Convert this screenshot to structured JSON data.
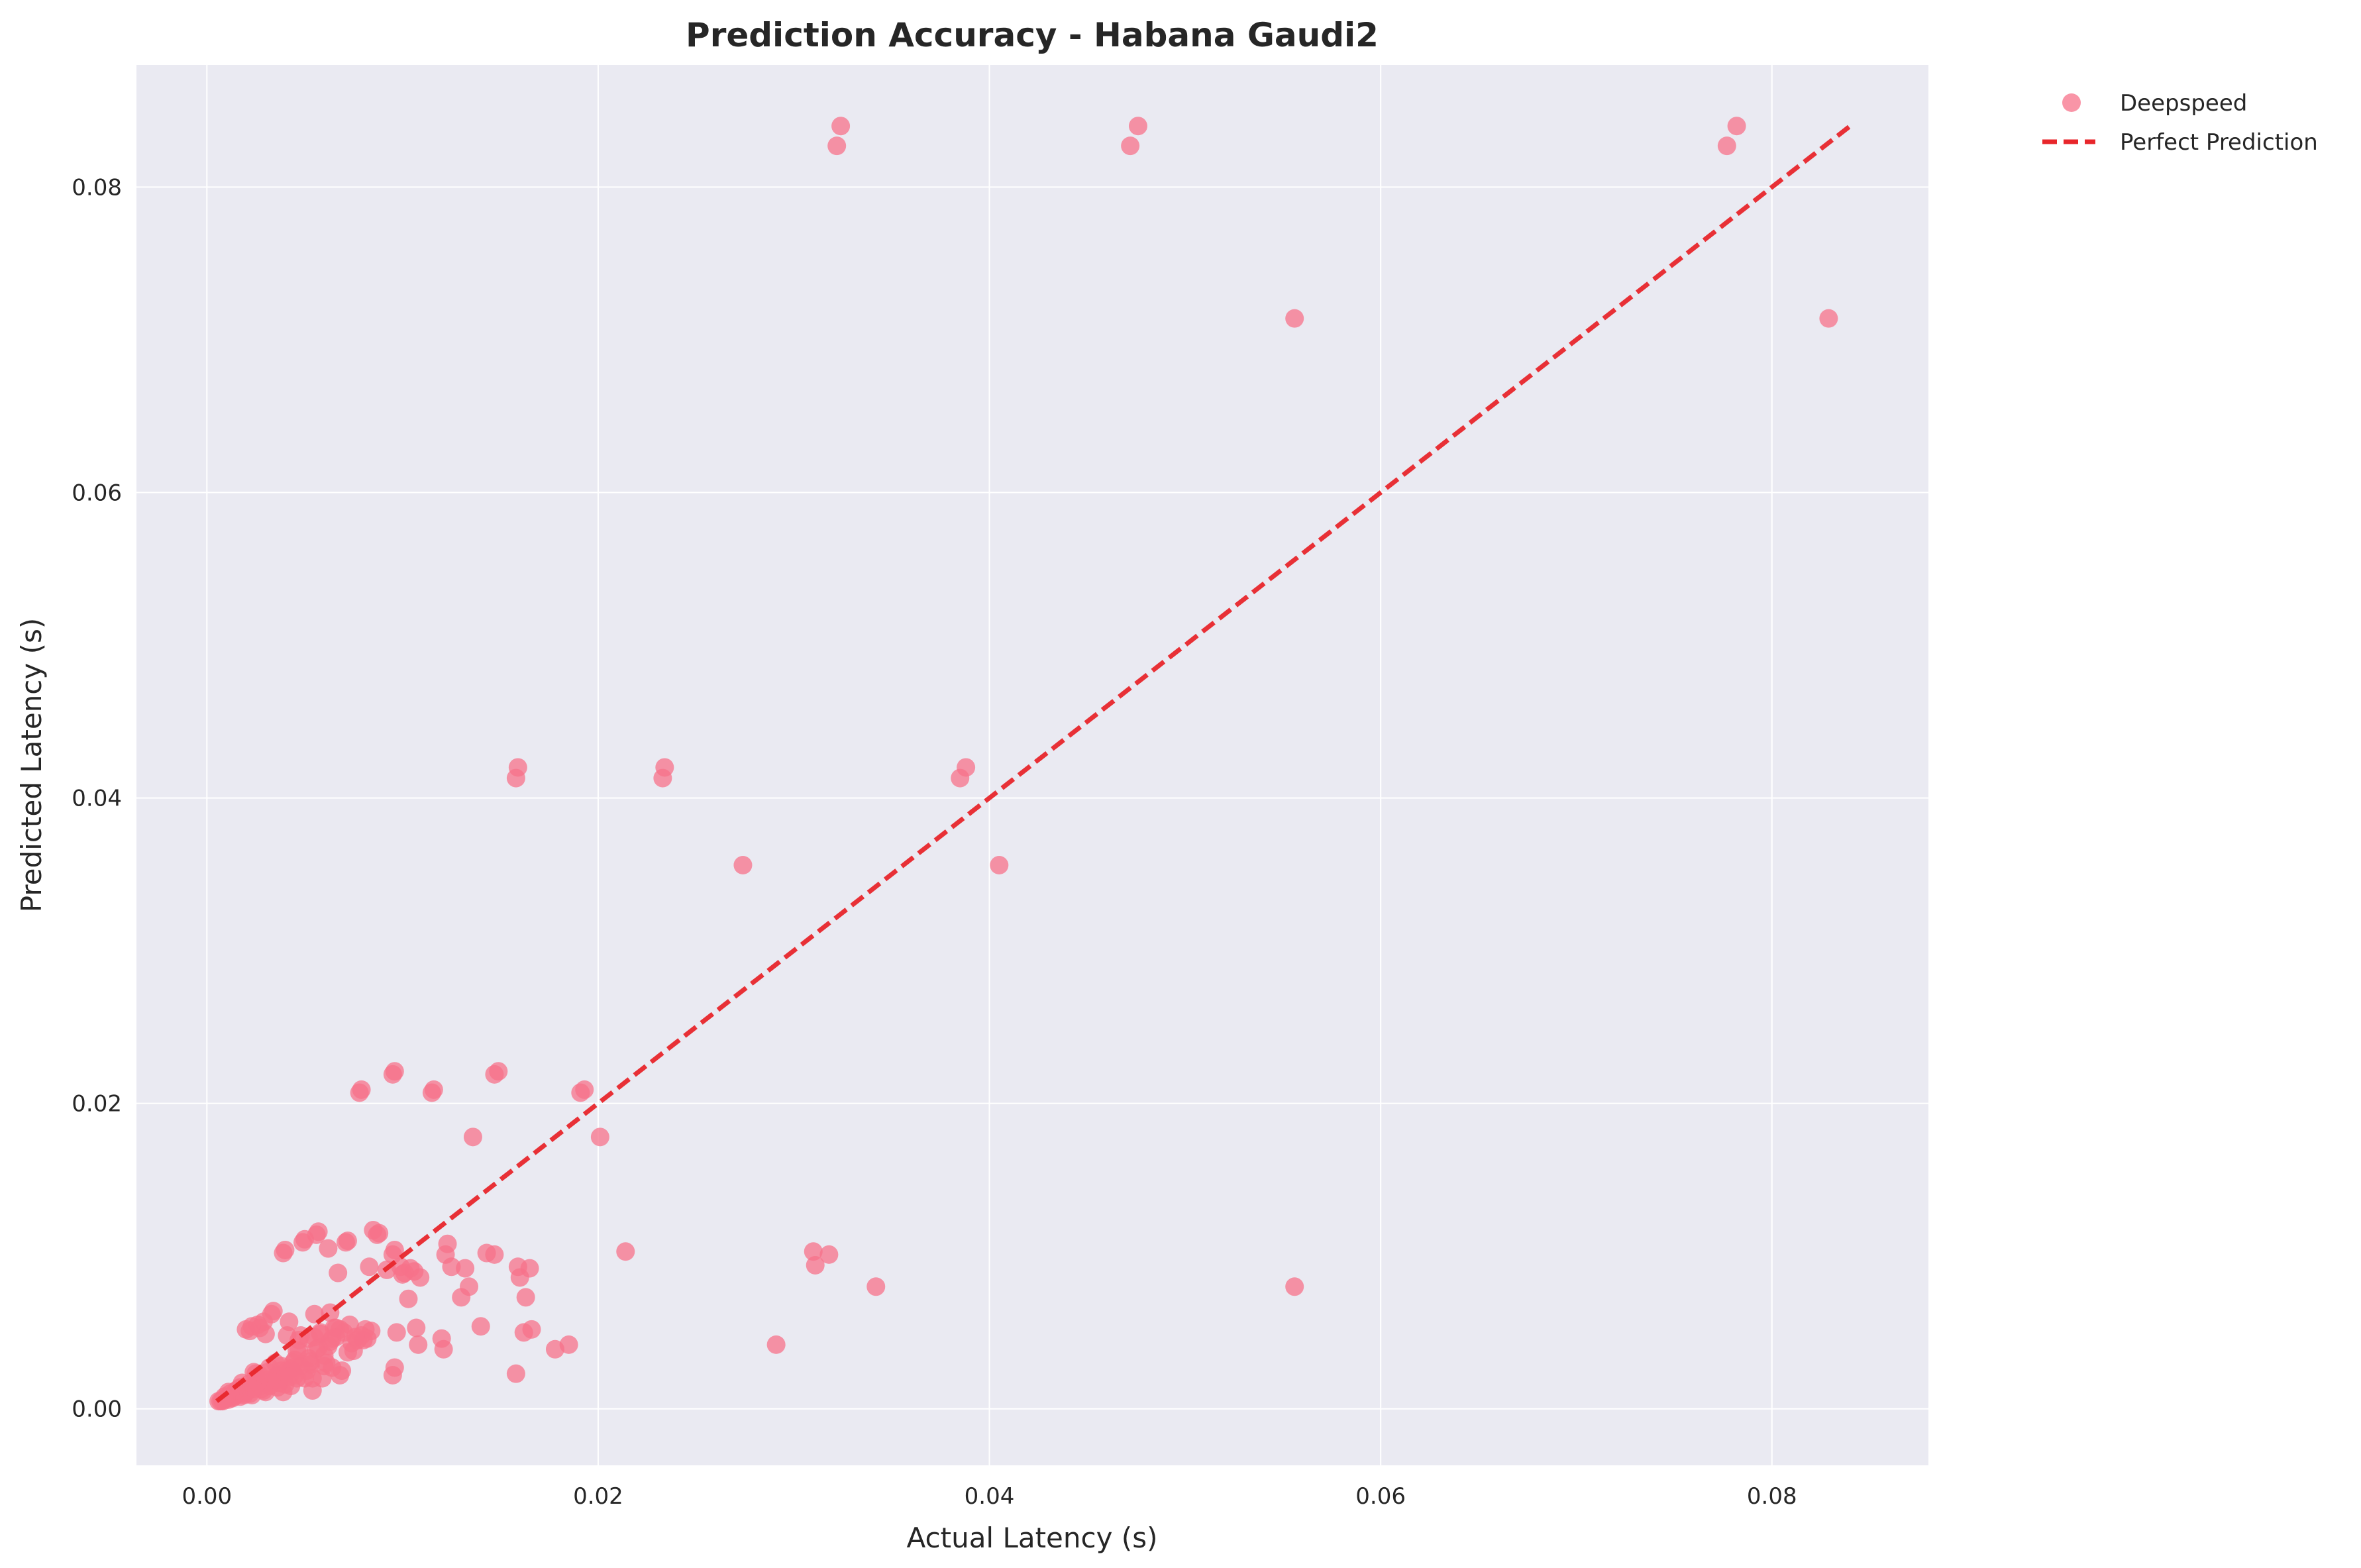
{
  "chart_data": {
    "type": "scatter",
    "title": "Prediction Accuracy - Habana Gaudi2",
    "xlabel": "Actual Latency (s)",
    "ylabel": "Predicted Latency (s)",
    "xlim": [
      -0.0036,
      0.088
    ],
    "ylim": [
      -0.0037,
      0.088
    ],
    "xticks": [
      0.0,
      0.02,
      0.04,
      0.06,
      0.08
    ],
    "yticks": [
      0.0,
      0.02,
      0.04,
      0.06,
      0.08
    ],
    "xtick_labels": [
      "0.00",
      "0.02",
      "0.04",
      "0.06",
      "0.08"
    ],
    "ytick_labels": [
      "0.00",
      "0.02",
      "0.04",
      "0.06",
      "0.08"
    ],
    "grid": true,
    "legend_position": "outside-top-right",
    "colors": {
      "plot_background": "#eaeaf2",
      "points": "#f77189",
      "reference_line": "#e8262b",
      "grid": "#ffffff",
      "text": "#262626"
    },
    "series": [
      {
        "name": "Deepspeed",
        "kind": "scatter",
        "x": [
          0.0324,
          0.0322,
          0.0476,
          0.0472,
          0.0782,
          0.0777,
          0.0556,
          0.0829,
          0.0159,
          0.0158,
          0.0234,
          0.0233,
          0.0388,
          0.0385,
          0.0274,
          0.0405,
          0.0096,
          0.0095,
          0.0079,
          0.0078,
          0.0149,
          0.0147,
          0.0116,
          0.0115,
          0.0193,
          0.0191,
          0.0136,
          0.0201,
          0.0556,
          0.0214,
          0.031,
          0.0318,
          0.0311,
          0.0342,
          0.0291,
          0.0185,
          0.0178,
          0.0158,
          0.0166,
          0.0162,
          0.0163,
          0.016,
          0.0165,
          0.0159,
          0.0147,
          0.0143,
          0.0134,
          0.0132,
          0.013,
          0.0125,
          0.0123,
          0.0122,
          0.012,
          0.0121,
          0.014,
          0.0108,
          0.0107,
          0.0109,
          0.0104,
          0.0103,
          0.0101,
          0.0099,
          0.0096,
          0.0095,
          0.0097,
          0.0096,
          0.0095,
          0.0088,
          0.0087,
          0.0084,
          0.0081,
          0.0083,
          0.0079,
          0.0077,
          0.0075,
          0.0073,
          0.0072,
          0.0071,
          0.0069,
          0.0068,
          0.0067,
          0.0066,
          0.0065,
          0.0064,
          0.0063,
          0.0062,
          0.0061,
          0.006,
          0.0058,
          0.0057,
          0.0056,
          0.0055,
          0.0054,
          0.0053,
          0.0052,
          0.0051,
          0.005,
          0.0049,
          0.0048,
          0.0047,
          0.0046,
          0.0045,
          0.0044,
          0.0043,
          0.0042,
          0.0041,
          0.004,
          0.0039,
          0.0038,
          0.0037,
          0.0036,
          0.0035,
          0.0034,
          0.0033,
          0.0032,
          0.0031,
          0.003,
          0.0029,
          0.0028,
          0.0027,
          0.0026,
          0.0025,
          0.0024,
          0.0023,
          0.0022,
          0.0021,
          0.002,
          0.0019,
          0.0018,
          0.0017,
          0.0016,
          0.0015,
          0.0014,
          0.0013,
          0.0012,
          0.0011,
          0.001,
          0.0009,
          0.0008,
          0.0007,
          0.0006,
          0.0056,
          0.0055,
          0.0048,
          0.0047,
          0.0039,
          0.0038,
          0.0035,
          0.0034,
          0.0028,
          0.0027,
          0.0021,
          0.002,
          0.0068,
          0.0072,
          0.006,
          0.0058,
          0.0064,
          0.0054,
          0.0052,
          0.0045,
          0.0043,
          0.0041,
          0.0036,
          0.0033,
          0.003,
          0.0025,
          0.0023,
          0.0019,
          0.0017,
          0.0015,
          0.0013,
          0.0011,
          0.0009,
          0.0066,
          0.0063,
          0.0059,
          0.0057,
          0.0053,
          0.005,
          0.0046,
          0.0044,
          0.004,
          0.0037,
          0.0032,
          0.0029,
          0.0026,
          0.0024,
          0.0022,
          0.0018,
          0.0016,
          0.0014,
          0.0012,
          0.001,
          0.0008,
          0.0106,
          0.01,
          0.0082,
          0.008,
          0.0074,
          0.007,
          0.0092,
          0.0085,
          0.0076,
          0.0062,
          0.0042,
          0.0031
        ],
        "y": [
          0.084,
          0.0827,
          0.084,
          0.0827,
          0.084,
          0.0827,
          0.0714,
          0.0714,
          0.042,
          0.0413,
          0.042,
          0.0413,
          0.042,
          0.0413,
          0.0356,
          0.0356,
          0.0221,
          0.0219,
          0.0209,
          0.0207,
          0.0221,
          0.0219,
          0.0209,
          0.0207,
          0.0209,
          0.0207,
          0.0178,
          0.0178,
          0.008,
          0.0103,
          0.0103,
          0.0101,
          0.0094,
          0.008,
          0.0042,
          0.0042,
          0.0039,
          0.0023,
          0.0052,
          0.005,
          0.0073,
          0.0086,
          0.0092,
          0.0093,
          0.0101,
          0.0102,
          0.008,
          0.0092,
          0.0073,
          0.0093,
          0.0108,
          0.0101,
          0.0046,
          0.0039,
          0.0054,
          0.0042,
          0.0053,
          0.0086,
          0.0092,
          0.0072,
          0.0089,
          0.0093,
          0.0104,
          0.0101,
          0.005,
          0.0027,
          0.0022,
          0.0115,
          0.0114,
          0.0051,
          0.0052,
          0.0093,
          0.0048,
          0.0045,
          0.0038,
          0.0055,
          0.011,
          0.0109,
          0.0025,
          0.0022,
          0.0089,
          0.0047,
          0.0053,
          0.0046,
          0.0063,
          0.0105,
          0.003,
          0.0028,
          0.0049,
          0.0116,
          0.0114,
          0.0047,
          0.002,
          0.0031,
          0.0033,
          0.0025,
          0.0111,
          0.0109,
          0.0048,
          0.0045,
          0.002,
          0.0022,
          0.003,
          0.0015,
          0.0057,
          0.0048,
          0.0104,
          0.0102,
          0.0028,
          0.0017,
          0.0022,
          0.0021,
          0.0064,
          0.0062,
          0.0027,
          0.0019,
          0.0049,
          0.0057,
          0.0015,
          0.0053,
          0.0055,
          0.002,
          0.0024,
          0.0054,
          0.0051,
          0.0012,
          0.0011,
          0.0009,
          0.0017,
          0.0014,
          0.0013,
          0.0011,
          0.0009,
          0.0009,
          0.0008,
          0.0006,
          0.0007,
          0.0006,
          0.0006,
          0.0005,
          0.0005,
          0.0039,
          0.0062,
          0.0028,
          0.0038,
          0.0011,
          0.0025,
          0.003,
          0.0018,
          0.0013,
          0.0022,
          0.0016,
          0.0052,
          0.0052,
          0.0037,
          0.0035,
          0.005,
          0.0027,
          0.0012,
          0.0046,
          0.0032,
          0.0026,
          0.0025,
          0.0014,
          0.0018,
          0.0011,
          0.0023,
          0.0009,
          0.001,
          0.0008,
          0.0012,
          0.0007,
          0.0011,
          0.0008,
          0.0053,
          0.0044,
          0.002,
          0.004,
          0.0029,
          0.002,
          0.0038,
          0.0027,
          0.0016,
          0.0019,
          0.0015,
          0.0012,
          0.0017,
          0.0013,
          0.001,
          0.0014,
          0.001,
          0.0008,
          0.001,
          0.0007,
          0.0005,
          0.009,
          0.0088,
          0.0046,
          0.0045,
          0.0043,
          0.005,
          0.0091,
          0.0117,
          0.0047,
          0.0041,
          0.0021,
          0.0024
        ]
      },
      {
        "name": "Perfect Prediction",
        "kind": "line",
        "style": "dashed",
        "x": [
          0.0005,
          0.084
        ],
        "y": [
          0.0005,
          0.084
        ]
      }
    ]
  }
}
